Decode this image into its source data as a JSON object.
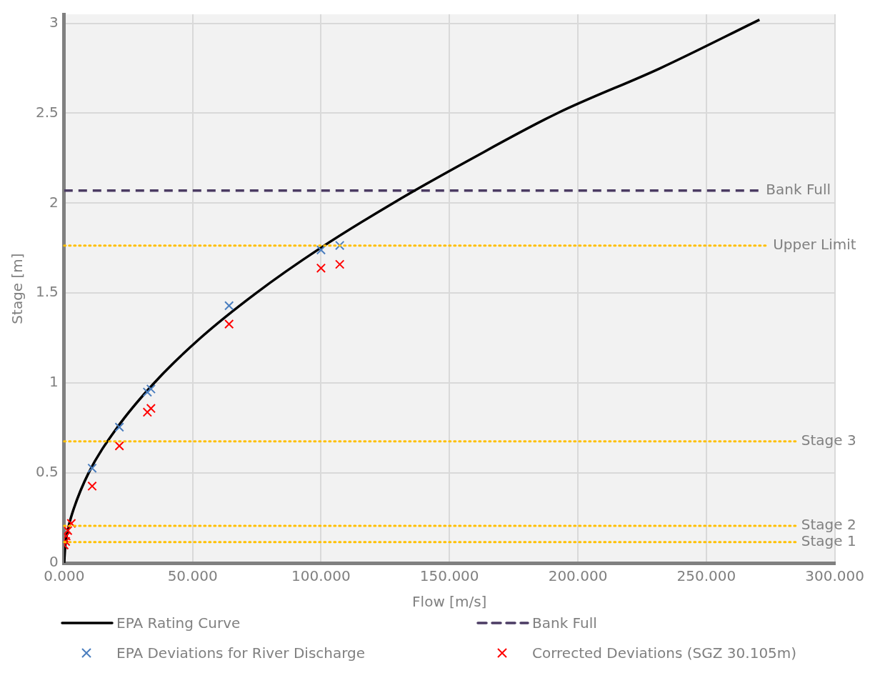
{
  "chart_data": {
    "type": "scatter",
    "xlabel": "Flow [m/s]",
    "ylabel": "Stage [m]",
    "xlim": [
      0,
      300
    ],
    "xticks": [
      {
        "value": 0,
        "label": "0.000"
      },
      {
        "value": 50,
        "label": "50.000"
      },
      {
        "value": 100,
        "label": "100.000"
      },
      {
        "value": 150,
        "label": "150.000"
      },
      {
        "value": 200,
        "label": "200.000"
      },
      {
        "value": 250,
        "label": "250.000"
      },
      {
        "value": 300,
        "label": "300.000"
      }
    ],
    "ylim": [
      0,
      3.05
    ],
    "yticks": [
      0,
      0.5,
      1,
      1.5,
      2,
      2.5,
      3
    ],
    "grid": true,
    "legend": "bottom",
    "series": [
      {
        "name": "EPA Rating Curve",
        "type": "line",
        "color": "#000000",
        "marker": "none",
        "line_style": "solid",
        "x": [
          0,
          0.47,
          1.7,
          3.7,
          9.5,
          20.5,
          35,
          53,
          74.7,
          99.7,
          128,
          159,
          192,
          232,
          270.7
        ],
        "values": [
          0,
          0.1,
          0.2,
          0.3,
          0.5,
          0.75,
          1,
          1.25,
          1.5,
          1.75,
          2,
          2.25,
          2.5,
          2.75,
          3.02
        ]
      },
      {
        "name": "Bank Full",
        "type": "line",
        "color": "#4b3b63",
        "marker": "none",
        "line_style": "dashed",
        "x": [
          0,
          271
        ],
        "values": [
          2.07,
          2.07
        ]
      },
      {
        "name": "EPA Deviations for River Discharge",
        "type": "scatter",
        "color": "#4a7ebf",
        "marker": "cross",
        "x": [
          10.9,
          21.5,
          32.4,
          33.8,
          64.2,
          100,
          107.3
        ],
        "values": [
          0.527,
          0.755,
          0.95,
          0.967,
          1.43,
          1.74,
          1.765
        ]
      },
      {
        "name": "Corrected Deviations (SGZ 30.105m)",
        "type": "scatter",
        "color": "#ff0000",
        "marker": "cross",
        "x": [
          0,
          0.6,
          0.8,
          1.4,
          2.8,
          10.9,
          21.5,
          32.4,
          33.8,
          64.2,
          100,
          107.3
        ],
        "values": [
          0.1,
          0.12,
          0.15,
          0.18,
          0.22,
          0.427,
          0.651,
          0.838,
          0.859,
          1.328,
          1.639,
          1.66
        ]
      }
    ],
    "ref_lines": [
      {
        "axis": "y",
        "value": 1.764,
        "label": "Upper Limit",
        "color": "#ffc000",
        "line_style": "dotted"
      },
      {
        "axis": "y",
        "value": 0.676,
        "label": "Stage 3",
        "color": "#ffc000",
        "line_style": "dotted"
      },
      {
        "axis": "y",
        "value": 0.207,
        "label": "Stage 2",
        "color": "#ffc000",
        "line_style": "dotted"
      },
      {
        "axis": "y",
        "value": 0.116,
        "label": "Stage 1",
        "color": "#ffc000",
        "line_style": "dotted"
      }
    ],
    "annotations": [
      {
        "text": "Bank Full",
        "x": 271,
        "y": 2.07
      }
    ]
  }
}
